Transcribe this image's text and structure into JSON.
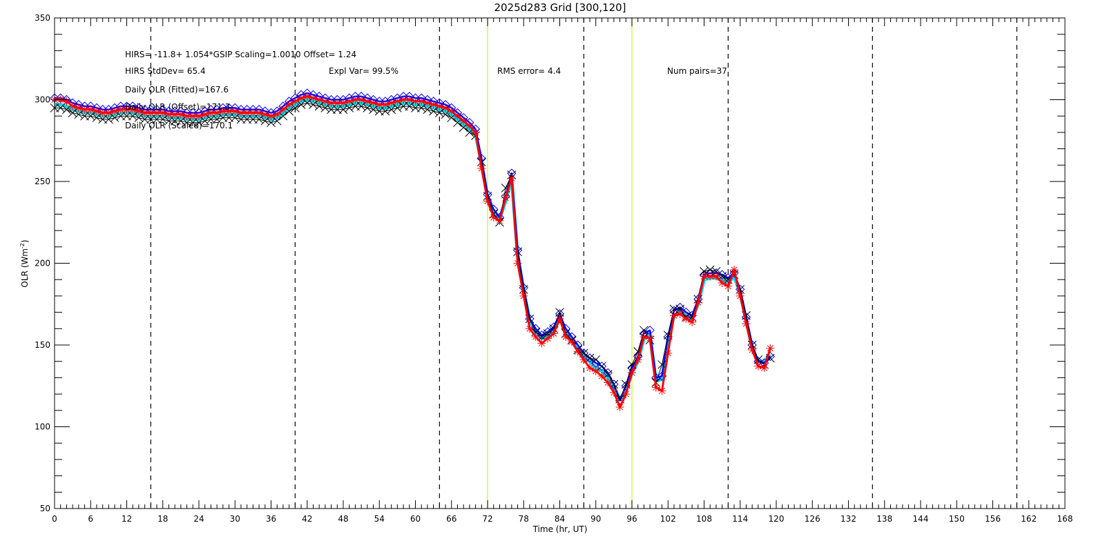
{
  "chart_data": {
    "type": "line",
    "title": "2025d283 Grid [300,120]",
    "xlabel": "Time (hr, UT)",
    "ylabel": "OLR (Wm",
    "ylabel_sup": "-2",
    "ylabel_close": ")",
    "xlim": [
      0,
      168
    ],
    "ylim": [
      50,
      350
    ],
    "x_ticks": [
      0,
      6,
      12,
      18,
      24,
      30,
      36,
      42,
      48,
      54,
      60,
      66,
      72,
      78,
      84,
      90,
      96,
      102,
      108,
      114,
      120,
      126,
      132,
      138,
      144,
      150,
      156,
      162,
      168
    ],
    "y_ticks": [
      50,
      100,
      150,
      200,
      250,
      300,
      350
    ],
    "dashed_vlines": [
      16,
      40,
      64,
      88,
      112,
      136,
      160
    ],
    "highlight_vlines": [
      72,
      96
    ],
    "highlight_color": "#ccff33",
    "annotations": [
      {
        "text": "HIRS=  -11.8+  1.054*GSIP  Scaling=1.0010  Offset=  1.24"
      },
      {
        "text": "HIRS StdDev= 65.4"
      },
      {
        "text": "Expl Var= 99.5%"
      },
      {
        "text": "RMS error=  4.4"
      },
      {
        "text": "Num pairs=37"
      },
      {
        "text": "Daily OLR (Fitted)=167.6"
      },
      {
        "text": "Daily OLR (Offset)=171.3"
      },
      {
        "text": "Daily OLR (Scaled)=170.1"
      }
    ],
    "x": [
      0,
      1,
      2,
      3,
      4,
      5,
      6,
      7,
      8,
      9,
      10,
      11,
      12,
      13,
      14,
      15,
      16,
      17,
      18,
      19,
      20,
      21,
      22,
      23,
      24,
      25,
      26,
      27,
      28,
      29,
      30,
      31,
      32,
      33,
      34,
      35,
      36,
      37,
      38,
      39,
      40,
      41,
      42,
      43,
      44,
      45,
      46,
      47,
      48,
      49,
      50,
      51,
      52,
      53,
      54,
      55,
      56,
      57,
      58,
      59,
      60,
      61,
      62,
      63,
      64,
      65,
      66,
      67,
      68,
      69,
      70,
      71,
      72,
      73,
      74,
      75,
      76,
      77,
      78,
      79,
      80,
      81,
      82,
      83,
      84,
      85,
      86,
      87,
      88,
      89,
      90,
      91,
      92,
      93,
      94,
      95,
      96,
      97,
      98,
      99,
      100,
      101,
      102,
      103,
      104,
      105,
      106,
      107,
      108,
      109,
      110,
      111,
      112,
      113,
      114,
      115,
      116,
      117,
      118,
      119
    ],
    "series": [
      {
        "color": "#00ddee",
        "marker": "none",
        "values": [
          297,
          297,
          296,
          294,
          293,
          292,
          292,
          291,
          290,
          290,
          291,
          292,
          292,
          292,
          291,
          290,
          290,
          290,
          290,
          289,
          289,
          289,
          288,
          288,
          288,
          289,
          290,
          290,
          291,
          291,
          291,
          290,
          290,
          290,
          290,
          289,
          288,
          289,
          292,
          295,
          297,
          299,
          300,
          299,
          298,
          297,
          296,
          296,
          296,
          297,
          298,
          298,
          297,
          296,
          295,
          295,
          296,
          297,
          298,
          298,
          297,
          297,
          296,
          295,
          294,
          293,
          291,
          288,
          285,
          282,
          279,
          261,
          240,
          230,
          227,
          238,
          252,
          205,
          183,
          165,
          158,
          154,
          156,
          159,
          166,
          158,
          153,
          148,
          143,
          140,
          136,
          134,
          130,
          124,
          117,
          122,
          133,
          140,
          154,
          156,
          128,
          129,
          153,
          168,
          170,
          168,
          166,
          175,
          190,
          191,
          191,
          190,
          188,
          192,
          182,
          165,
          148,
          140,
          140,
          144
        ]
      },
      {
        "color": "#0000ff",
        "marker": "diamond",
        "values": [
          301,
          301,
          300,
          298,
          297,
          296,
          296,
          295,
          294,
          294,
          295,
          296,
          296,
          296,
          295,
          294,
          294,
          294,
          294,
          293,
          293,
          293,
          292,
          292,
          292,
          293,
          294,
          294,
          295,
          295,
          295,
          294,
          294,
          294,
          294,
          293,
          292,
          293,
          296,
          299,
          301,
          303,
          304,
          303,
          302,
          301,
          300,
          300,
          300,
          301,
          302,
          302,
          301,
          300,
          299,
          299,
          300,
          301,
          302,
          302,
          301,
          301,
          300,
          299,
          298,
          297,
          295,
          292,
          289,
          286,
          282,
          264,
          242,
          233,
          228,
          241,
          255,
          208,
          185,
          166,
          160,
          156,
          158,
          161,
          169,
          160,
          155,
          150,
          145,
          142,
          139,
          137,
          133,
          126,
          116,
          125,
          136,
          143,
          157,
          159,
          130,
          131,
          155,
          171,
          173,
          170,
          168,
          178,
          193,
          194,
          194,
          193,
          191,
          194,
          184,
          167,
          150,
          140,
          139,
          143
        ]
      },
      {
        "color": "#000000",
        "marker": "x",
        "values": [
          295,
          295,
          294,
          292,
          291,
          290,
          290,
          289,
          288,
          288,
          289,
          290,
          290,
          290,
          289,
          288,
          288,
          288,
          288,
          287,
          287,
          287,
          286,
          286,
          286,
          287,
          288,
          288,
          289,
          289,
          289,
          288,
          288,
          288,
          288,
          287,
          286,
          287,
          290,
          293,
          295,
          297,
          298,
          297,
          296,
          295,
          294,
          294,
          294,
          295,
          296,
          296,
          295,
          294,
          293,
          293,
          294,
          295,
          296,
          296,
          295,
          295,
          294,
          293,
          292,
          291,
          289,
          286,
          283,
          280,
          278,
          262,
          241,
          230,
          225,
          246,
          254,
          207,
          184,
          166,
          158,
          155,
          157,
          160,
          170,
          157,
          153,
          147,
          145,
          142,
          141,
          137,
          132,
          126,
          117,
          126,
          138,
          146,
          159,
          153,
          127,
          138,
          156,
          172,
          172,
          167,
          167,
          178,
          195,
          196,
          195,
          192,
          190,
          193,
          184,
          168,
          150,
          141,
          138,
          142
        ]
      },
      {
        "color": "#ff0000",
        "marker": "asterisk",
        "values": [
          300,
          300,
          299,
          296,
          295,
          294,
          294,
          293,
          292,
          292,
          293,
          294,
          294,
          294,
          293,
          292,
          292,
          292,
          292,
          291,
          291,
          291,
          290,
          290,
          290,
          291,
          292,
          292,
          293,
          293,
          293,
          292,
          292,
          292,
          292,
          291,
          290,
          291,
          294,
          297,
          299,
          301,
          302,
          301,
          300,
          299,
          298,
          298,
          298,
          299,
          300,
          300,
          299,
          298,
          297,
          297,
          298,
          299,
          300,
          300,
          299,
          299,
          298,
          297,
          296,
          295,
          293,
          290,
          287,
          284,
          280,
          258,
          238,
          228,
          226,
          240,
          252,
          200,
          180,
          160,
          155,
          151,
          154,
          157,
          166,
          155,
          152,
          146,
          141,
          136,
          134,
          131,
          127,
          121,
          112,
          120,
          133,
          141,
          155,
          154,
          124,
          122,
          145,
          168,
          169,
          166,
          164,
          176,
          192,
          192,
          192,
          188,
          186,
          196,
          180,
          163,
          147,
          137,
          136,
          148
        ]
      }
    ]
  }
}
